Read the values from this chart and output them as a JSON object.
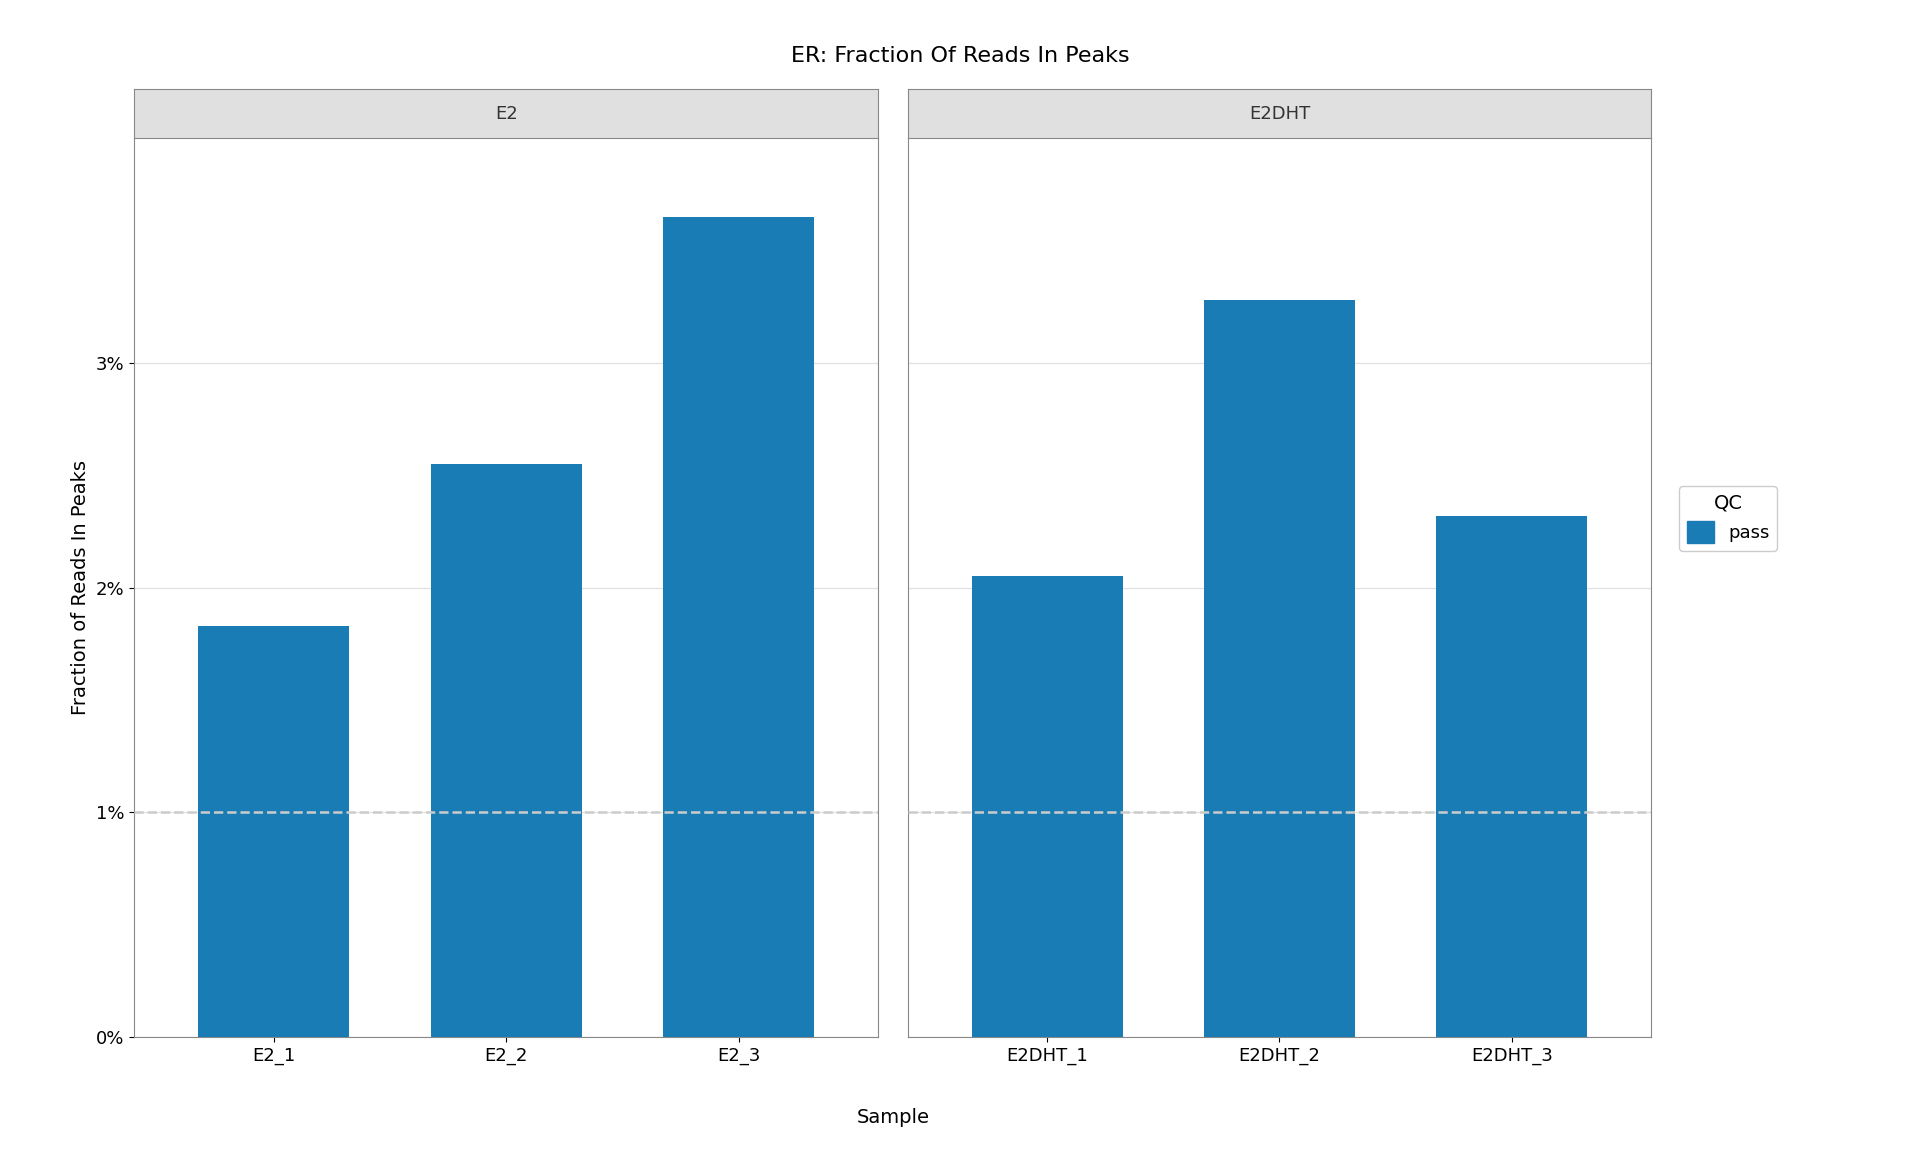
{
  "title": "ER: Fraction Of Reads In Peaks",
  "xlabel": "Sample",
  "ylabel": "Fraction of Reads In Peaks",
  "facets": [
    "E2",
    "E2DHT"
  ],
  "samples": {
    "E2": [
      "E2_1",
      "E2_2",
      "E2_3"
    ],
    "E2DHT": [
      "E2DHT_1",
      "E2DHT_2",
      "E2DHT_3"
    ]
  },
  "values": {
    "E2": [
      0.0183,
      0.0255,
      0.0365
    ],
    "E2DHT": [
      0.0205,
      0.0328,
      0.0232
    ]
  },
  "bar_color": "#1a7cb4",
  "threshold": 0.01,
  "threshold_color": "#cccccc",
  "threshold_linestyle": "--",
  "threshold_linewidth": 1.8,
  "ylim": [
    0,
    0.04
  ],
  "yticks": [
    0.0,
    0.01,
    0.02,
    0.03
  ],
  "yticklabels": [
    "0%",
    "1%",
    "2%",
    "3%"
  ],
  "background_color": "#ffffff",
  "panel_bg": "#ffffff",
  "strip_bg": "#e0e0e0",
  "strip_text_color": "#333333",
  "grid_color": "#e0e0e0",
  "spine_color": "#888888",
  "legend_title": "QC",
  "legend_label": "pass",
  "title_fontsize": 16,
  "axis_label_fontsize": 14,
  "tick_fontsize": 13,
  "strip_fontsize": 13,
  "legend_fontsize": 13
}
